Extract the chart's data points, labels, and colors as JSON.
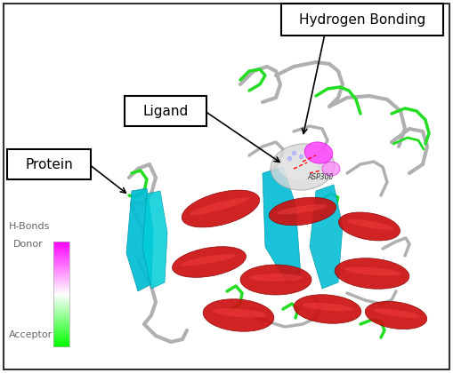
{
  "bg_color": "#ffffff",
  "border_color": "#000000",
  "labels": {
    "hydrogen_bonding": "Hydrogen Bonding",
    "ligand": "Ligand",
    "protein": "Protein",
    "h_bonds": "H-Bonds",
    "donor": "Donor",
    "acceptor": "Acceptor"
  },
  "font_size_labels": 10,
  "font_size_legend": 8,
  "asp300_label": "ASP300"
}
